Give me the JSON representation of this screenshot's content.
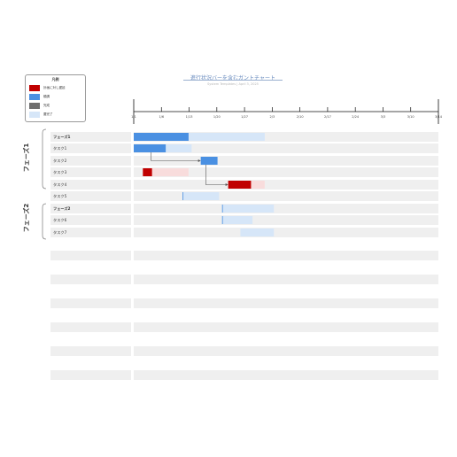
{
  "title": "進行状況バーを含むガントチャート",
  "subtitle": "System Templates | April 3, 2025",
  "legend": {
    "title": "凡例",
    "items": [
      {
        "label": "計画に対し遅延",
        "color": "#c00000"
      },
      {
        "label": "順調",
        "color": "#4a90e2"
      },
      {
        "label": "完成",
        "color": "#6e6e6e"
      },
      {
        "label": "要完了",
        "color": "#d6e6f8"
      }
    ]
  },
  "timeline": {
    "ticks": [
      "1/1",
      "1/6",
      "1/13",
      "1/20",
      "1/27",
      "2/3",
      "2/10",
      "2/17",
      "2/24",
      "3/3",
      "3/10",
      "3/14"
    ]
  },
  "phases": [
    {
      "label": "フェーズ1"
    },
    {
      "label": "フェーズ2"
    }
  ],
  "rows": [
    {
      "label": "フェーズ1",
      "bold": true
    },
    {
      "label": "タスク1",
      "bold": false
    },
    {
      "label": "タスク2",
      "bold": false
    },
    {
      "label": "タスク3",
      "bold": false
    },
    {
      "label": "タスク4",
      "bold": false
    },
    {
      "label": "タスク5",
      "bold": false
    },
    {
      "label": "フェーズ2",
      "bold": true
    },
    {
      "label": "タスク6",
      "bold": false
    },
    {
      "label": "タスク7",
      "bold": false
    },
    {
      "label": "",
      "bold": false
    },
    {
      "label": "",
      "bold": false
    },
    {
      "label": "",
      "bold": false
    },
    {
      "label": "",
      "bold": false
    },
    {
      "label": "",
      "bold": false
    },
    {
      "label": "",
      "bold": false
    },
    {
      "label": "",
      "bold": false
    },
    {
      "label": "",
      "bold": false
    },
    {
      "label": "",
      "bold": false
    },
    {
      "label": "",
      "bold": false
    }
  ],
  "chart_data": {
    "type": "gantt",
    "bars": [
      {
        "row": 0,
        "start": 0.0,
        "progress_end": 0.18,
        "end": 0.43,
        "status": "順調"
      },
      {
        "row": 1,
        "start": 0.0,
        "progress_end": 0.105,
        "end": 0.19,
        "status": "順調"
      },
      {
        "row": 2,
        "start": 0.22,
        "progress_end": 0.275,
        "end": 0.275,
        "status": "順調"
      },
      {
        "row": 3,
        "start": 0.03,
        "progress_end": 0.06,
        "end": 0.18,
        "status": "計画に対し遅延"
      },
      {
        "row": 4,
        "start": 0.31,
        "progress_end": 0.385,
        "end": 0.43,
        "status": "計画に対し遅延"
      },
      {
        "row": 5,
        "start": 0.16,
        "progress_end": 0.162,
        "end": 0.28,
        "status": "順調"
      },
      {
        "row": 6,
        "start": 0.29,
        "progress_end": 0.292,
        "end": 0.46,
        "status": "順調"
      },
      {
        "row": 7,
        "start": 0.29,
        "progress_end": 0.292,
        "end": 0.39,
        "status": "順調"
      },
      {
        "row": 8,
        "start": 0.35,
        "progress_end": 0.35,
        "end": 0.46,
        "status": "要完了"
      }
    ],
    "dependencies": [
      {
        "from_row": 1,
        "to_row": 2
      },
      {
        "from_row": 2,
        "to_row": 4
      }
    ]
  }
}
